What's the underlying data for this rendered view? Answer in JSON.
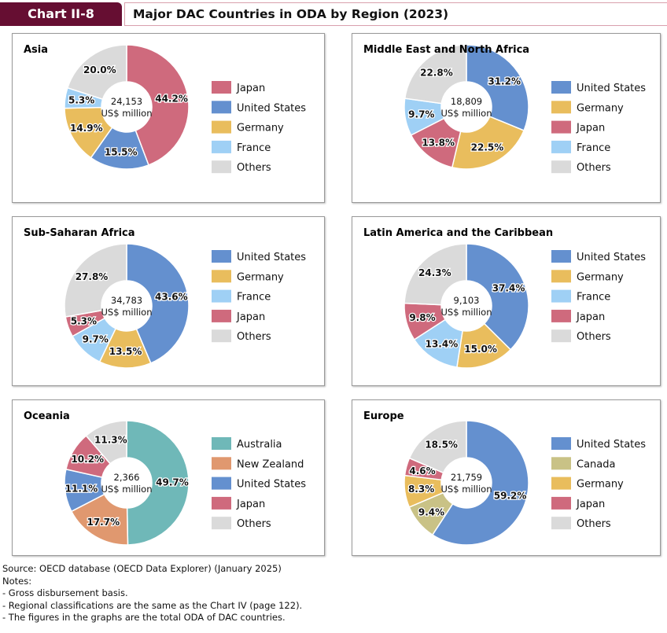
{
  "header": {
    "tag": "Chart II-8",
    "title": "Major DAC Countries in ODA by Region (2023)"
  },
  "colors": {
    "Japan": "#cf6a7d",
    "United States": "#6490cf",
    "Germany": "#e9bd5d",
    "France": "#9fd0f5",
    "Others": "#dadada",
    "Australia": "#6fb8b8",
    "New Zealand": "#e0986f",
    "Canada": "#c9c286"
  },
  "chart_data": [
    {
      "type": "pie",
      "title": "Asia",
      "center_label": [
        "24,153",
        "US$ million"
      ],
      "categories": [
        "Japan",
        "United States",
        "Germany",
        "France",
        "Others"
      ],
      "values": [
        44.2,
        15.5,
        14.9,
        5.3,
        20.0
      ]
    },
    {
      "type": "pie",
      "title": "Middle East and North Africa",
      "center_label": [
        "18,809",
        "US$ million"
      ],
      "categories": [
        "United States",
        "Germany",
        "Japan",
        "France",
        "Others"
      ],
      "values": [
        31.2,
        22.5,
        13.8,
        9.7,
        22.8
      ]
    },
    {
      "type": "pie",
      "title": "Sub-Saharan Africa",
      "center_label": [
        "34,783",
        "US$ million"
      ],
      "categories": [
        "United States",
        "Germany",
        "France",
        "Japan",
        "Others"
      ],
      "values": [
        43.6,
        13.5,
        9.7,
        5.3,
        27.8
      ]
    },
    {
      "type": "pie",
      "title": "Latin America and the Caribbean",
      "center_label": [
        "9,103",
        "US$ million"
      ],
      "categories": [
        "United States",
        "Germany",
        "France",
        "Japan",
        "Others"
      ],
      "values": [
        37.4,
        15.0,
        13.4,
        9.8,
        24.3
      ]
    },
    {
      "type": "pie",
      "title": "Oceania",
      "center_label": [
        "2,366",
        "US$ million"
      ],
      "categories": [
        "Australia",
        "New Zealand",
        "United States",
        "Japan",
        "Others"
      ],
      "values": [
        49.7,
        17.7,
        11.1,
        10.2,
        11.3
      ]
    },
    {
      "type": "pie",
      "title": "Europe",
      "center_label": [
        "21,759",
        "US$ million"
      ],
      "categories": [
        "United States",
        "Canada",
        "Germany",
        "Japan",
        "Others"
      ],
      "values": [
        59.2,
        9.4,
        8.3,
        4.6,
        18.5
      ]
    }
  ],
  "notes": [
    "Source: OECD database (OECD Data Explorer) (January 2025)",
    "Notes:",
    "- Gross disbursement basis.",
    "- Regional classifications are the same as the Chart IV (page 122).",
    "- The figures in the graphs are the total ODA of DAC countries."
  ]
}
